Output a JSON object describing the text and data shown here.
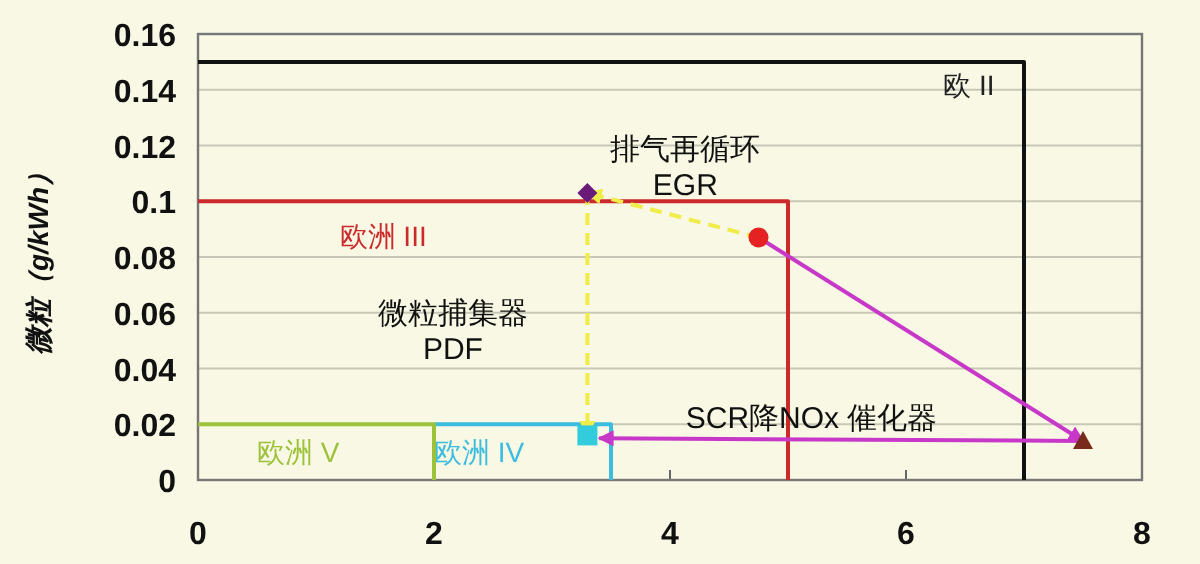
{
  "chart_data": {
    "type": "line",
    "ylabel": "微粒（g/kWh）",
    "xlim": [
      0,
      8
    ],
    "ylim": [
      0,
      0.16
    ],
    "xticks": [
      0,
      2,
      4,
      6,
      8
    ],
    "yticks": [
      0,
      0.02,
      0.04,
      0.06,
      0.08,
      {
        "value": 0.1,
        "label": "0.1"
      },
      0.12,
      0.14,
      0.16
    ],
    "grid": "y",
    "series": [
      {
        "name": "欧 II",
        "color": "#111111",
        "x": [
          0,
          7,
          7
        ],
        "values": [
          0.15,
          0.15,
          0
        ]
      },
      {
        "name": "欧洲 III",
        "color": "#cc2a2a",
        "x": [
          0,
          5,
          5
        ],
        "values": [
          0.1,
          0.1,
          0
        ]
      },
      {
        "name": "欧洲 IV",
        "color": "#3cbde0",
        "x": [
          2,
          3.5,
          3.5
        ],
        "values": [
          0.02,
          0.02,
          0
        ]
      },
      {
        "name": "欧洲 V",
        "color": "#9cc23a",
        "x": [
          0,
          2,
          2
        ],
        "values": [
          0.02,
          0.02,
          0
        ]
      },
      {
        "color": "#f0ec48",
        "line_style": "dashed",
        "x": [
          4.75,
          3.3
        ],
        "values": [
          0.087,
          0.103
        ]
      },
      {
        "color": "#f0ec48",
        "line_style": "dashed",
        "x": [
          3.3,
          3.3
        ],
        "values": [
          0.103,
          0.016
        ]
      },
      {
        "color": "#c838c8",
        "x": [
          4.75,
          7.5
        ],
        "values": [
          0.087,
          0.014
        ]
      },
      {
        "color": "#c838c8",
        "x": [
          7.5,
          3.4
        ],
        "values": [
          0.014,
          0.015
        ]
      },
      {
        "type": "scatter",
        "marker": "diamond",
        "color": "#6a1b7a",
        "x": [
          3.3
        ],
        "values": [
          0.103
        ]
      },
      {
        "type": "scatter",
        "marker": "circle",
        "color": "#e52222",
        "x": [
          4.75
        ],
        "values": [
          0.087
        ]
      },
      {
        "type": "scatter",
        "marker": "triangle",
        "color": "#7a2a1a",
        "x": [
          7.5
        ],
        "values": [
          0.014
        ]
      },
      {
        "type": "scatter",
        "marker": "square",
        "color": "#33ccdd",
        "x": [
          3.3
        ],
        "values": [
          0.016
        ]
      }
    ],
    "annotations": [
      "排气再循环\nEGR",
      "微粒捕集器\nPDF",
      "SCR降NOx 催化器"
    ]
  }
}
